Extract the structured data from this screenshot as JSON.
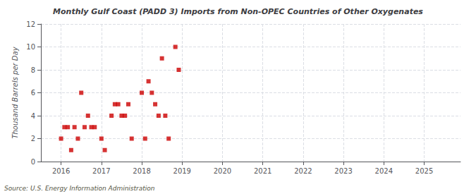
{
  "chart_data": {
    "type": "scatter",
    "title": "Monthly Gulf Coast (PADD 3) Imports from Non-OPEC Countries of Other Oxygenates",
    "ylabel": "Thousand Barrels per Day",
    "annotation": "Source: U.S. Energy Information Administration",
    "color": "#cc0000",
    "marker": "square",
    "grid": true,
    "xlim": [
      2015.5,
      2025.9
    ],
    "ylim": [
      0,
      12
    ],
    "xticks": [
      2016,
      2017,
      2018,
      2019,
      2020,
      2021,
      2022,
      2023,
      2024,
      2025
    ],
    "yticks": [
      0,
      2,
      4,
      6,
      8,
      10,
      12
    ],
    "x": [
      2016.0,
      2016.083,
      2016.167,
      2016.25,
      2016.333,
      2016.417,
      2016.5,
      2016.583,
      2016.667,
      2016.75,
      2016.833,
      2017.0,
      2017.083,
      2017.25,
      2017.333,
      2017.417,
      2017.5,
      2017.583,
      2017.667,
      2017.75,
      2018.0,
      2018.083,
      2018.167,
      2018.25,
      2018.333,
      2018.417,
      2018.5,
      2018.583,
      2018.667,
      2018.833,
      2018.917
    ],
    "values": [
      2,
      3,
      3,
      1,
      3,
      2,
      6,
      3,
      4,
      3,
      3,
      2,
      1,
      4,
      5,
      5,
      4,
      4,
      5,
      2,
      6,
      2,
      7,
      6,
      5,
      4,
      9,
      4,
      2,
      10,
      8
    ]
  }
}
